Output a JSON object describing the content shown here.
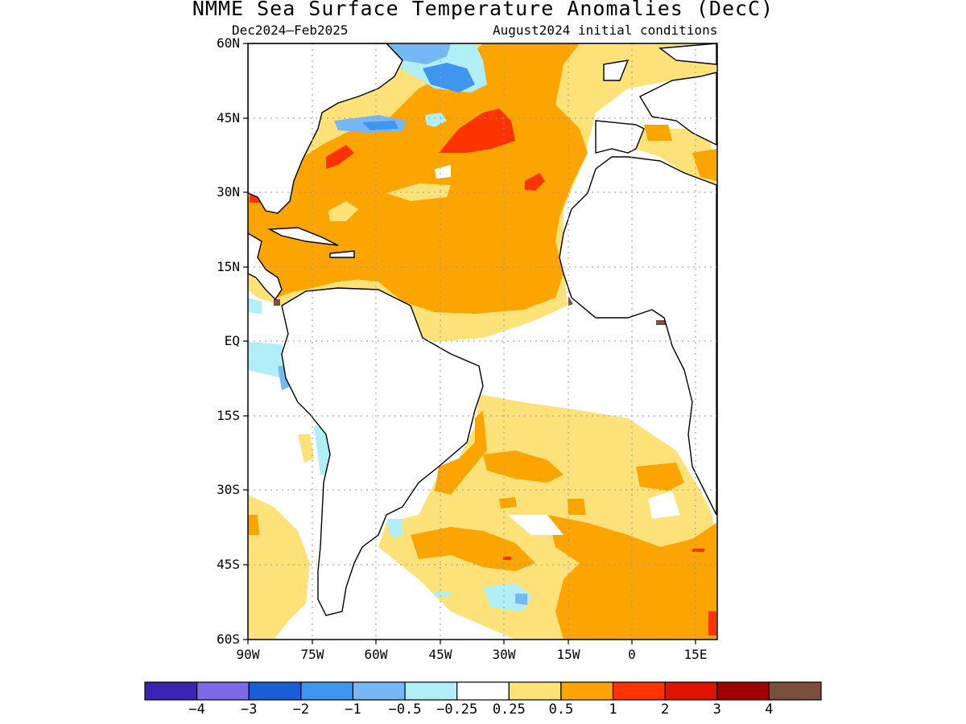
{
  "title": "NMME Sea Surface Temperature Anomalies (DecC)",
  "period": "Dec2024–Feb2025",
  "initial_conditions": "August2024 initial conditions",
  "lat_labels": [
    "60N",
    "45N",
    "30N",
    "15N",
    "EQ",
    "15S",
    "30S",
    "45S",
    "60S"
  ],
  "lon_labels": [
    "90W",
    "75W",
    "60W",
    "45W",
    "30W",
    "15W",
    "0",
    "15E"
  ],
  "colorbar": {
    "colors": [
      "#3b23b3",
      "#7e6ae6",
      "#1b5dd6",
      "#3e96ee",
      "#76b8f6",
      "#b0eef8",
      "#ffffff",
      "#fde27a",
      "#fca400",
      "#fd3400",
      "#df1400",
      "#a10000",
      "#7c4e40"
    ],
    "labels": [
      "−4",
      "−3",
      "−2",
      "−1",
      "−0.5",
      "−0.25",
      "0.25",
      "0.5",
      "1",
      "2",
      "3",
      "4"
    ]
  },
  "map": {
    "lon_range": [
      -90,
      20
    ],
    "lat_range": [
      -60,
      60
    ],
    "grid": true,
    "region": "Atlantic Ocean"
  }
}
